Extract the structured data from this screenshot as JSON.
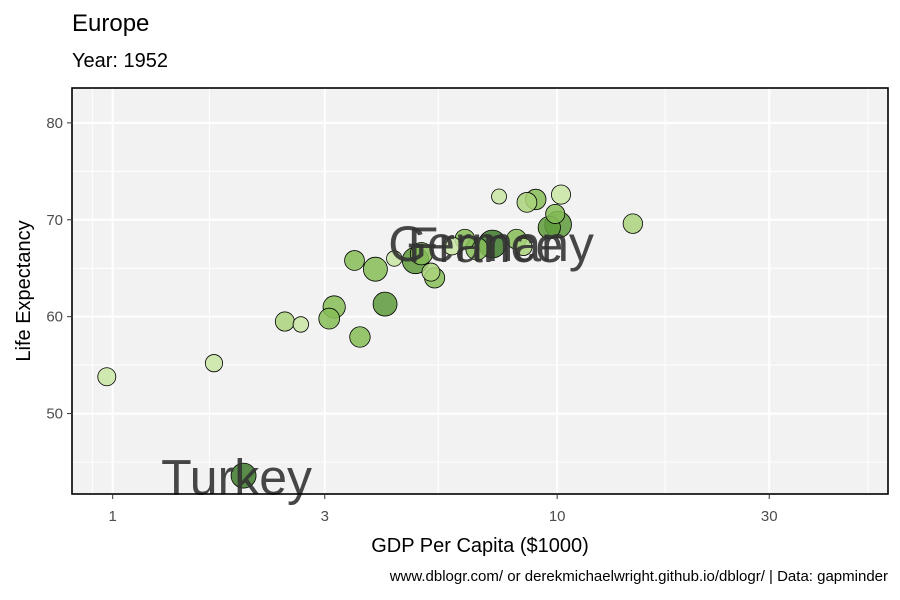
{
  "chart_data": {
    "type": "scatter",
    "title": "Europe",
    "subtitle": "Year: 1952",
    "caption": "www.dblogr.com/ or derekmichaelwright.github.io/dblogr/ | Data: gapminder",
    "xlabel": "GDP Per Capita ($1000)",
    "ylabel": "Life Expectancy",
    "x_scale": "log10",
    "xlim": [
      0.81,
      55.5
    ],
    "ylim": [
      41.7,
      83.6
    ],
    "x_ticks": [
      {
        "value": 1,
        "label": "1"
      },
      {
        "value": 3,
        "label": "3"
      },
      {
        "value": 10,
        "label": "10"
      },
      {
        "value": 30,
        "label": "30"
      }
    ],
    "x_minor_grid": [
      0.9,
      1.65,
      5.4,
      17.5,
      50
    ],
    "y_ticks": [
      {
        "value": 50,
        "label": "50"
      },
      {
        "value": 60,
        "label": "60"
      },
      {
        "value": 70,
        "label": "70"
      },
      {
        "value": 80,
        "label": "80"
      }
    ],
    "y_minor_grid": [
      45,
      55,
      65,
      75
    ],
    "grid": true,
    "legend": "none",
    "colors": {
      "panel_bg": "#f2f2f2",
      "panel_border": "#000000",
      "grid": "#ffffff",
      "point_stroke": "#000000",
      "label": "#333333",
      "palette": [
        "#c9e6a4",
        "#abd47d",
        "#86bd57",
        "#5f9b3b",
        "#3e7a2b"
      ]
    },
    "points": [
      {
        "x": 0.97,
        "y": 53.8,
        "size": 1.7,
        "shade": 0
      },
      {
        "x": 1.69,
        "y": 55.2,
        "size": 1.5,
        "shade": 0
      },
      {
        "x": 1.97,
        "y": 43.6,
        "size": 4.0,
        "shade": 4
      },
      {
        "x": 2.44,
        "y": 59.5,
        "size": 2.0,
        "shade": 1
      },
      {
        "x": 2.65,
        "y": 59.2,
        "size": 1.1,
        "shade": 0
      },
      {
        "x": 3.07,
        "y": 59.8,
        "size": 2.5,
        "shade": 2
      },
      {
        "x": 3.15,
        "y": 61.0,
        "size": 3.0,
        "shade": 2
      },
      {
        "x": 3.6,
        "y": 57.9,
        "size": 2.4,
        "shade": 2
      },
      {
        "x": 3.5,
        "y": 65.8,
        "size": 2.2,
        "shade": 2
      },
      {
        "x": 3.9,
        "y": 64.9,
        "size": 3.6,
        "shade": 2
      },
      {
        "x": 4.1,
        "y": 61.3,
        "size": 3.6,
        "shade": 3
      },
      {
        "x": 4.3,
        "y": 66.0,
        "size": 1.1,
        "shade": 0
      },
      {
        "x": 4.95,
        "y": 66.5,
        "size": 3.0,
        "shade": 2
      },
      {
        "x": 4.8,
        "y": 65.8,
        "size": 4.6,
        "shade": 3
      },
      {
        "x": 5.3,
        "y": 64.0,
        "size": 2.3,
        "shade": 2
      },
      {
        "x": 5.2,
        "y": 64.6,
        "size": 1.7,
        "shade": 1
      },
      {
        "x": 5.8,
        "y": 67.3,
        "size": 1.7,
        "shade": 0
      },
      {
        "x": 6.2,
        "y": 68.0,
        "size": 2.2,
        "shade": 2
      },
      {
        "x": 6.6,
        "y": 67.0,
        "size": 3.0,
        "shade": 2
      },
      {
        "x": 7.15,
        "y": 67.5,
        "size": 5.2,
        "shade": 4
      },
      {
        "x": 7.4,
        "y": 72.4,
        "size": 1.0,
        "shade": 0
      },
      {
        "x": 8.1,
        "y": 68.0,
        "size": 2.2,
        "shade": 2
      },
      {
        "x": 8.4,
        "y": 67.2,
        "size": 1.5,
        "shade": 1
      },
      {
        "x": 8.55,
        "y": 71.8,
        "size": 2.2,
        "shade": 1
      },
      {
        "x": 8.95,
        "y": 72.1,
        "size": 2.4,
        "shade": 2
      },
      {
        "x": 9.6,
        "y": 69.2,
        "size": 3.0,
        "shade": 3
      },
      {
        "x": 9.9,
        "y": 70.6,
        "size": 2.0,
        "shade": 2
      },
      {
        "x": 10.2,
        "y": 72.6,
        "size": 2.0,
        "shade": 0
      },
      {
        "x": 10.05,
        "y": 69.5,
        "size": 4.7,
        "shade": 3
      },
      {
        "x": 14.8,
        "y": 69.6,
        "size": 2.1,
        "shade": 1
      }
    ],
    "labels": [
      {
        "text": "France",
        "x": 6.9,
        "y": 67.4
      },
      {
        "text": "Germany",
        "x": 7.1,
        "y": 67.5
      },
      {
        "text": "Turkey",
        "x": 1.9,
        "y": 43.4
      }
    ]
  }
}
